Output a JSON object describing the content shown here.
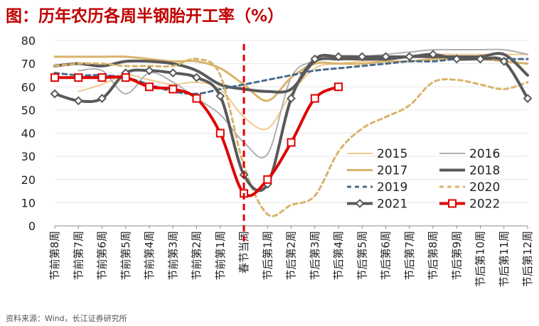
{
  "title": "图：历年农历各周半钢胎开工率（%）",
  "source": "资料来源：Wind，长江证券研究所",
  "colors": {
    "2015": "#efc98c",
    "2016": "#b0b0b0",
    "2017": "#d9b36a",
    "2018": "#595959",
    "2019": "#4a6b8a",
    "2020": "#d9b36a",
    "2021": "#595959",
    "2022": "#e00000",
    "divider": "#e00000",
    "title": "#c00000"
  },
  "chart_data": {
    "type": "line",
    "title": "图：历年农历各周半钢胎开工率（%）",
    "xlabel": "",
    "ylabel": "",
    "ylim": [
      0,
      80
    ],
    "yticks": [
      0,
      10,
      20,
      30,
      40,
      50,
      60,
      70,
      80
    ],
    "categories": [
      "节前第8周",
      "节前第7周",
      "节前第6周",
      "节前第5周",
      "节前第4周",
      "节前第3周",
      "节前第2周",
      "节前第1周",
      "春节当周",
      "节后第1周",
      "节后第2周",
      "节后第3周",
      "节后第4周",
      "节后第5周",
      "节后第6周",
      "节后第7周",
      "节后第8周",
      "节后第9周",
      "节后第10周",
      "节后第11周",
      "节后第12周"
    ],
    "divider_category": "春节当周",
    "series": [
      {
        "name": "2015",
        "style": "solid",
        "width": 2,
        "marker": "none",
        "values": [
          null,
          58,
          61,
          65,
          63,
          61,
          62,
          59,
          47,
          42,
          57,
          68,
          70,
          71,
          72,
          73,
          74,
          74,
          74,
          74,
          74
        ]
      },
      {
        "name": "2016",
        "style": "solid",
        "width": 2,
        "marker": "none",
        "values": [
          null,
          67,
          67,
          57,
          66,
          62,
          55,
          48,
          36,
          31,
          64,
          71,
          72,
          73,
          74,
          75,
          76,
          76,
          76,
          76,
          74
        ]
      },
      {
        "name": "2017",
        "style": "solid",
        "width": 3,
        "marker": "none",
        "values": [
          73,
          73,
          73,
          73,
          72,
          71,
          71,
          68,
          61,
          54,
          64,
          70,
          70,
          70,
          71,
          71,
          72,
          72,
          72,
          71,
          70
        ]
      },
      {
        "name": "2018",
        "style": "solid",
        "width": 4,
        "marker": "none",
        "values": [
          69,
          70,
          69,
          71,
          71,
          70,
          67,
          61,
          59,
          58,
          59,
          71,
          72,
          72,
          72,
          73,
          73,
          73,
          73,
          74,
          65
        ]
      },
      {
        "name": "2019",
        "style": "dashed",
        "width": 3,
        "marker": "none",
        "values": [
          66,
          65,
          65,
          64,
          61,
          58,
          57,
          59,
          61,
          63,
          65,
          67,
          68,
          69,
          70,
          71,
          71,
          72,
          72,
          72,
          72
        ]
      },
      {
        "name": "2020",
        "style": "dashed",
        "width": 3,
        "marker": "none",
        "values": [
          69,
          70,
          70,
          69,
          69,
          69,
          72,
          65,
          26,
          5,
          9,
          13,
          32,
          42,
          47,
          52,
          62,
          63,
          61,
          59,
          62
        ]
      },
      {
        "name": "2021",
        "style": "solid",
        "width": 4,
        "marker": "diamond",
        "values": [
          57,
          54,
          55,
          66,
          67,
          66,
          64,
          56,
          22,
          18,
          55,
          72,
          73,
          73,
          73,
          73,
          74,
          72,
          72,
          71,
          55
        ]
      },
      {
        "name": "2022",
        "style": "solid",
        "width": 4,
        "marker": "square",
        "values": [
          64,
          64,
          64,
          64,
          60,
          59,
          55,
          40,
          14,
          20,
          36,
          55,
          60,
          null,
          null,
          null,
          null,
          null,
          null,
          null,
          null
        ]
      }
    ],
    "legend": {
      "position": "bottom-right",
      "order": [
        "2015",
        "2016",
        "2017",
        "2018",
        "2019",
        "2020",
        "2021",
        "2022"
      ]
    }
  }
}
